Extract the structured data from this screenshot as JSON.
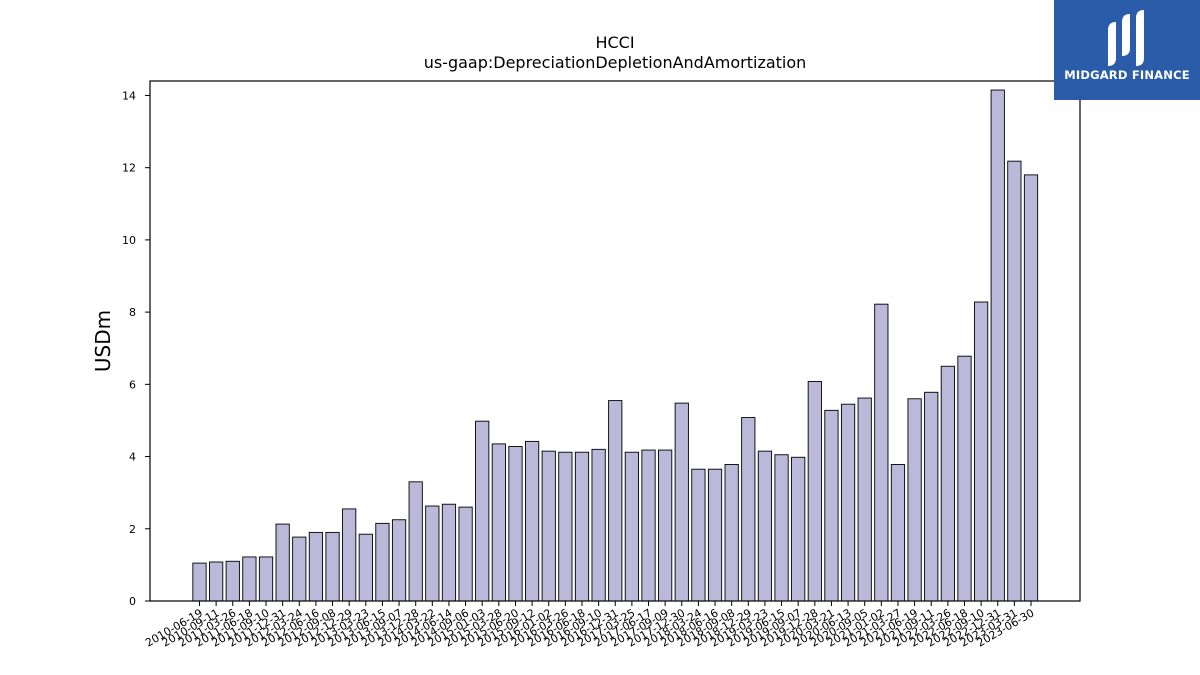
{
  "chart_data": {
    "type": "bar",
    "title": "HCCI",
    "subtitle": "us-gaap:DepreciationDepletionAndAmortization",
    "ylabel": "USDm",
    "xlabel": "",
    "ylim": [
      0,
      14.4
    ],
    "yticks": [
      0,
      2,
      4,
      6,
      8,
      10,
      12,
      14
    ],
    "grid": false,
    "bar_color": "#bcb8da",
    "edge_color": "#000000",
    "categories": [
      "2010-06-19",
      "2010-09-11",
      "2011-03-26",
      "2011-06-18",
      "2011-09-10",
      "2011-12-31",
      "2012-03-24",
      "2012-06-16",
      "2012-09-08",
      "2012-12-29",
      "2013-03-23",
      "2013-06-15",
      "2013-09-07",
      "2013-12-28",
      "2014-03-22",
      "2014-06-14",
      "2014-09-06",
      "2015-01-03",
      "2015-03-28",
      "2015-06-20",
      "2015-09-12",
      "2016-01-02",
      "2016-03-26",
      "2016-06-18",
      "2016-09-10",
      "2016-12-31",
      "2017-03-25",
      "2017-06-17",
      "2017-09-09",
      "2017-12-30",
      "2018-03-24",
      "2018-06-16",
      "2018-09-08",
      "2018-12-29",
      "2019-03-23",
      "2019-06-15",
      "2019-09-07",
      "2019-12-28",
      "2020-03-21",
      "2020-06-13",
      "2020-09-05",
      "2021-01-02",
      "2021-03-27",
      "2021-06-19",
      "2021-09-11",
      "2022-03-26",
      "2022-06-18",
      "2022-09-10",
      "2022-12-31",
      "2023-03-31",
      "2023-06-30"
    ],
    "values": [
      1.05,
      1.08,
      1.1,
      1.22,
      1.22,
      2.13,
      1.77,
      1.9,
      1.9,
      2.55,
      1.85,
      2.15,
      2.25,
      3.3,
      2.63,
      2.68,
      2.6,
      4.98,
      4.35,
      4.28,
      4.42,
      4.15,
      4.12,
      4.12,
      4.2,
      5.55,
      4.12,
      4.18,
      4.18,
      5.48,
      3.65,
      3.65,
      3.78,
      5.08,
      4.15,
      4.05,
      3.98,
      6.08,
      5.28,
      5.45,
      5.62,
      8.22,
      3.78,
      5.6,
      5.78,
      6.5,
      6.78,
      8.28,
      14.15,
      12.18,
      11.8
    ]
  },
  "logo": {
    "text": "MIDGARD FINANCE",
    "background": "#2a5caa"
  }
}
